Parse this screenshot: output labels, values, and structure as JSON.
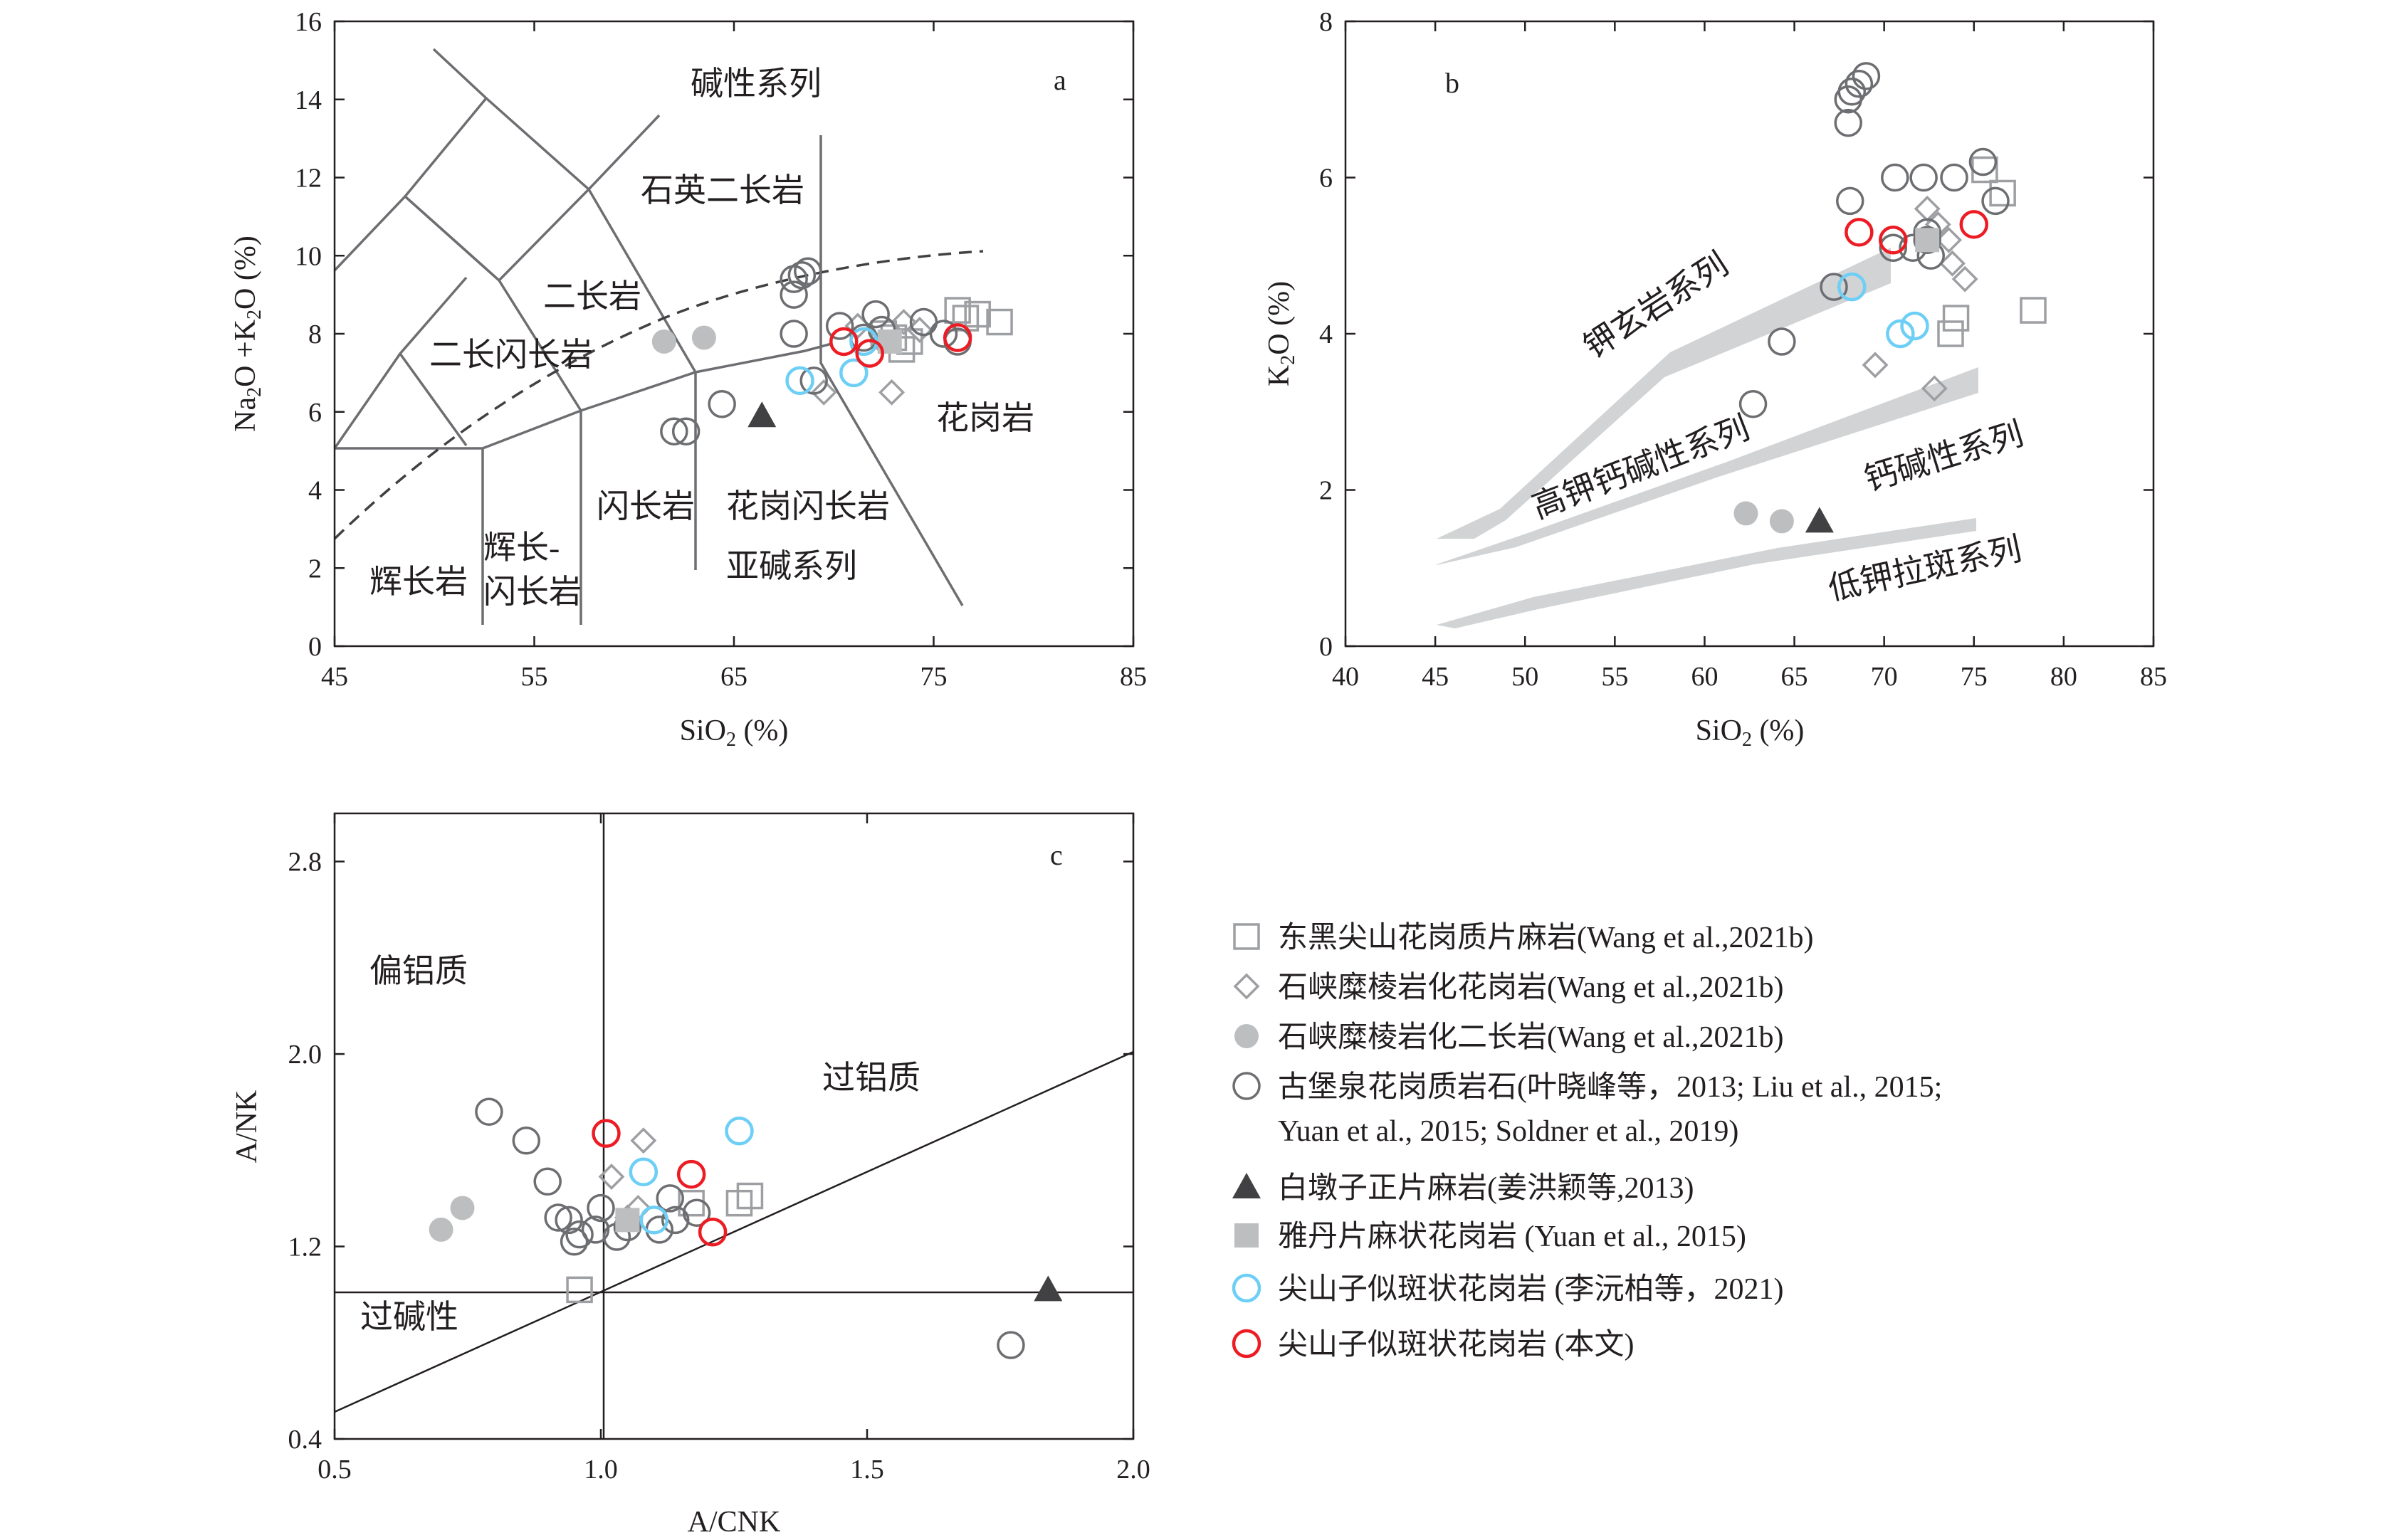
{
  "colors": {
    "gray_marker": "#9d9fa2",
    "dark_marker": "#6d6e71",
    "filled_gray": "#bcbec0",
    "square_fill": "#bcbec0",
    "black": "#231f20",
    "blue": "#6dcff6",
    "red": "#ed1c24",
    "band": "#d1d3d4"
  },
  "chart_data": [
    {
      "type": "scatter",
      "panel": "a",
      "xlabel": "SiO₂ (%)",
      "ylabel": "Na₂O +K₂O (%)",
      "xlim": [
        45,
        85
      ],
      "ylim": [
        0,
        16
      ],
      "xticks": [
        "45",
        "55",
        "65",
        "75",
        "85"
      ],
      "yticks": [
        "0",
        "2",
        "4",
        "6",
        "8",
        "10",
        "12",
        "14",
        "16"
      ],
      "region_labels": [
        "碱性系列",
        "石英二长岩",
        "二长岩",
        "二长闪长岩",
        "辉长岩",
        "辉长-",
        "闪长岩",
        "闪长岩",
        "花岗闪长岩",
        "亚碱系列",
        "花岗岩"
      ],
      "series": [
        {
          "name": "东黑尖山花岗质片麻岩(Wang et al.,2021b)",
          "marker": "open-square",
          "points": [
            [
              76.2,
              8.6
            ],
            [
              76.6,
              8.4
            ],
            [
              77.2,
              8.5
            ],
            [
              78.3,
              8.3
            ],
            [
              73.0,
              7.9
            ],
            [
              73.4,
              7.6
            ],
            [
              73.8,
              7.8
            ],
            [
              72.5,
              8.0
            ]
          ]
        },
        {
          "name": "石峡糜棱岩化花岗岩(Wang et al.,2021b)",
          "marker": "open-diamond",
          "points": [
            [
              69.5,
              6.5
            ],
            [
              72.9,
              6.5
            ],
            [
              71.2,
              8.2
            ],
            [
              73.5,
              8.3
            ],
            [
              74.3,
              8.1
            ],
            [
              72.4,
              7.8
            ]
          ]
        },
        {
          "name": "石峡糜棱岩化二长岩(Wang et al.,2021b)",
          "marker": "filled-circle",
          "points": [
            [
              61.5,
              7.8
            ],
            [
              63.5,
              7.9
            ]
          ]
        },
        {
          "name": "古堡泉花岗质岩石",
          "marker": "open-circle",
          "points": [
            [
              68.0,
              9.0
            ],
            [
              68.0,
              9.4
            ],
            [
              68.4,
              9.5
            ],
            [
              68.7,
              9.6
            ],
            [
              68.0,
              8.0
            ],
            [
              69.0,
              6.8
            ],
            [
              70.3,
              8.2
            ],
            [
              71.5,
              7.9
            ],
            [
              72.1,
              8.5
            ],
            [
              72.4,
              8.1
            ],
            [
              74.5,
              8.3
            ],
            [
              75.5,
              8.0
            ],
            [
              76.2,
              7.8
            ],
            [
              64.4,
              6.2
            ],
            [
              62.0,
              5.5
            ],
            [
              62.6,
              5.5
            ]
          ]
        },
        {
          "name": "白墩子正片麻岩(姜洪颖等,2013)",
          "marker": "filled-triangle",
          "points": [
            [
              66.4,
              5.9
            ]
          ]
        },
        {
          "name": "雅丹片麻状花岗岩 (Yuan et al., 2015)",
          "marker": "filled-square",
          "points": [
            [
              72.8,
              7.8
            ]
          ]
        },
        {
          "name": "尖山子似斑状花岗岩 (李沅柏等，2021)",
          "marker": "open-circle-blue",
          "points": [
            [
              68.3,
              6.8
            ],
            [
              71.0,
              7.0
            ],
            [
              71.5,
              7.8
            ]
          ]
        },
        {
          "name": "尖山子似斑状花岗岩 (本文)",
          "marker": "open-circle-red",
          "points": [
            [
              70.5,
              7.8
            ],
            [
              71.8,
              7.5
            ],
            [
              76.2,
              7.9
            ]
          ]
        }
      ]
    },
    {
      "type": "scatter",
      "panel": "b",
      "xlabel": "SiO₂ (%)",
      "ylabel": "K₂O (%)",
      "xlim": [
        40,
        85
      ],
      "ylim": [
        0,
        8
      ],
      "xticks": [
        "40",
        "45",
        "50",
        "55",
        "60",
        "65",
        "70",
        "75",
        "80",
        "85"
      ],
      "yticks": [
        "0",
        "2",
        "4",
        "6",
        "8"
      ],
      "band_labels": [
        "钾玄岩系列",
        "高钾钙碱性系列",
        "钙碱性系列",
        "低钾拉斑系列"
      ],
      "series": [
        {
          "name": "东黑尖山花岗质片麻岩(Wang et al.,2021b)",
          "marker": "open-square",
          "points": [
            [
              75.6,
              6.1
            ],
            [
              76.6,
              5.8
            ],
            [
              78.3,
              4.3
            ],
            [
              73.7,
              4.0
            ],
            [
              74.0,
              4.2
            ]
          ]
        },
        {
          "name": "石峡糜棱岩化花岗岩(Wang et al.,2021b)",
          "marker": "open-diamond",
          "points": [
            [
              72.4,
              5.6
            ],
            [
              73.6,
              5.2
            ],
            [
              73.8,
              4.9
            ],
            [
              74.5,
              4.7
            ],
            [
              69.5,
              3.6
            ],
            [
              72.8,
              3.3
            ],
            [
              73.0,
              5.4
            ]
          ]
        },
        {
          "name": "石峡糜棱岩化二长岩(Wang et al.,2021b)",
          "marker": "filled-circle",
          "points": [
            [
              62.3,
              1.7
            ],
            [
              64.3,
              1.6
            ]
          ]
        },
        {
          "name": "古堡泉花岗质岩石",
          "marker": "open-circle",
          "points": [
            [
              68.2,
              7.1
            ],
            [
              68.6,
              7.2
            ],
            [
              69.0,
              7.3
            ],
            [
              68.0,
              7.0
            ],
            [
              68.0,
              6.7
            ],
            [
              68.1,
              5.7
            ],
            [
              70.6,
              6.0
            ],
            [
              72.2,
              6.0
            ],
            [
              73.9,
              6.0
            ],
            [
              75.5,
              6.2
            ],
            [
              76.2,
              5.7
            ],
            [
              72.4,
              5.3
            ],
            [
              72.4,
              5.2
            ],
            [
              71.6,
              5.1
            ],
            [
              72.6,
              5.0
            ],
            [
              70.5,
              5.1
            ],
            [
              67.2,
              4.6
            ],
            [
              64.3,
              3.9
            ],
            [
              62.7,
              3.1
            ]
          ]
        },
        {
          "name": "白墩子正片麻岩(姜洪颖等,2013)",
          "marker": "filled-triangle",
          "points": [
            [
              66.4,
              1.6
            ]
          ]
        },
        {
          "name": "雅丹片麻状花岗岩 (Yuan et al., 2015)",
          "marker": "filled-square",
          "points": [
            [
              72.4,
              5.2
            ]
          ]
        },
        {
          "name": "尖山子似斑状花岗岩 (李沅柏等，2021)",
          "marker": "open-circle-blue",
          "points": [
            [
              68.2,
              4.6
            ],
            [
              70.9,
              4.0
            ],
            [
              71.7,
              4.1
            ]
          ]
        },
        {
          "name": "尖山子似斑状花岗岩 (本文)",
          "marker": "open-circle-red",
          "points": [
            [
              68.6,
              5.3
            ],
            [
              70.5,
              5.2
            ],
            [
              75.0,
              5.4
            ]
          ]
        }
      ]
    },
    {
      "type": "scatter",
      "panel": "c",
      "xlabel": "A/CNK",
      "ylabel": "A/NK",
      "xlim": [
        0.5,
        2.0
      ],
      "ylim": [
        0.4,
        3.0
      ],
      "xticks": [
        "0.5",
        "1.0",
        "1.5",
        "2.0"
      ],
      "yticks": [
        "0.4",
        "1.2",
        "2.0",
        "2.8"
      ],
      "region_labels": [
        "偏铝质",
        "过铝质",
        "过碱性"
      ],
      "series": [
        {
          "name": "东黑尖山花岗质片麻岩(Wang et al.,2021b)",
          "marker": "open-square",
          "points": [
            [
              0.96,
              1.02
            ],
            [
              1.17,
              1.38
            ],
            [
              1.26,
              1.38
            ],
            [
              1.28,
              1.41
            ]
          ]
        },
        {
          "name": "石峡糜棱岩化花岗岩(Wang et al.,2021b)",
          "marker": "open-diamond",
          "points": [
            [
              1.08,
              1.64
            ],
            [
              1.02,
              1.49
            ],
            [
              1.07,
              1.36
            ],
            [
              1.05,
              1.32
            ]
          ]
        },
        {
          "name": "石峡糜棱岩化二长岩(Wang et al.,2021b)",
          "marker": "filled-circle",
          "points": [
            [
              0.7,
              1.27
            ],
            [
              0.74,
              1.36
            ]
          ]
        },
        {
          "name": "古堡泉花岗质岩石",
          "marker": "open-circle",
          "points": [
            [
              0.79,
              1.76
            ],
            [
              0.86,
              1.64
            ],
            [
              0.9,
              1.47
            ],
            [
              0.92,
              1.32
            ],
            [
              0.94,
              1.31
            ],
            [
              0.95,
              1.22
            ],
            [
              0.96,
              1.25
            ],
            [
              0.99,
              1.27
            ],
            [
              1.0,
              1.36
            ],
            [
              1.03,
              1.24
            ],
            [
              1.05,
              1.28
            ],
            [
              1.11,
              1.27
            ],
            [
              1.13,
              1.4
            ],
            [
              1.14,
              1.31
            ],
            [
              1.18,
              1.34
            ],
            [
              1.77,
              0.79
            ]
          ]
        },
        {
          "name": "白墩子正片麻岩(姜洪颖等,2013)",
          "marker": "filled-triangle",
          "points": [
            [
              1.84,
              1.02
            ]
          ]
        },
        {
          "name": "雅丹片麻状花岗岩 (Yuan et al., 2015)",
          "marker": "filled-square",
          "points": [
            [
              1.05,
              1.31
            ]
          ]
        },
        {
          "name": "尖山子似斑状花岗岩 (李沅柏等，2021)",
          "marker": "open-circle-blue",
          "points": [
            [
              1.26,
              1.68
            ],
            [
              1.08,
              1.51
            ],
            [
              1.1,
              1.31
            ]
          ]
        },
        {
          "name": "尖山子似斑状花岗岩 (本文)",
          "marker": "open-circle-red",
          "points": [
            [
              1.01,
              1.67
            ],
            [
              1.17,
              1.5
            ],
            [
              1.21,
              1.26
            ]
          ]
        }
      ]
    }
  ],
  "panel_labels": {
    "a": "a",
    "b": "b",
    "c": "c"
  },
  "legend": [
    {
      "marker": "open-square",
      "label": "东黑尖山花岗质片麻岩(Wang et al.,2021b)"
    },
    {
      "marker": "open-diamond",
      "label": "石峡糜棱岩化花岗岩(Wang et al.,2021b)"
    },
    {
      "marker": "filled-circle",
      "label": "石峡糜棱岩化二长岩(Wang et al.,2021b)"
    },
    {
      "marker": "open-circle",
      "label": "古堡泉花岗质岩石(叶晓峰等，2013; Liu et al., 2015;",
      "label2": "Yuan et al., 2015; Soldner et al., 2019)"
    },
    {
      "marker": "filled-triangle",
      "label": "白墩子正片麻岩(姜洪颖等,2013)"
    },
    {
      "marker": "filled-square",
      "label": "雅丹片麻状花岗岩 (Yuan et al., 2015)"
    },
    {
      "marker": "open-circle-blue",
      "label": "尖山子似斑状花岗岩 (李沅柏等，2021)"
    },
    {
      "marker": "open-circle-red",
      "label": "尖山子似斑状花岗岩 (本文)"
    }
  ]
}
